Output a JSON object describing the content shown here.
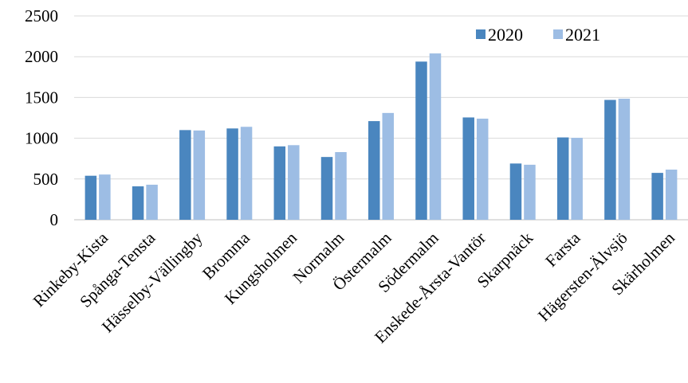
{
  "chart_data": {
    "type": "bar",
    "categories": [
      "Rinkeby-Kista",
      "Spånga-Tensta",
      "Hässelby-Vällingby",
      "Bromma",
      "Kungsholmen",
      "Normalm",
      "Östermalm",
      "Södermalm",
      "Enskede-Årsta-Vantör",
      "Skarpnäck",
      "Farsta",
      "Hägersten-Älvsjö",
      "Skärholmen"
    ],
    "series": [
      {
        "name": "2020",
        "color": "#4a86bf",
        "values": [
          540,
          410,
          1100,
          1120,
          900,
          770,
          1210,
          1940,
          1255,
          690,
          1010,
          1470,
          575
        ]
      },
      {
        "name": "2021",
        "color": "#9dbde4",
        "values": [
          555,
          430,
          1095,
          1140,
          915,
          830,
          1310,
          2040,
          1240,
          675,
          1005,
          1485,
          615
        ]
      }
    ],
    "yticks": [
      "0",
      "500",
      "1000",
      "1500",
      "2000",
      "2500"
    ],
    "ylim": [
      0,
      2500
    ],
    "grid": true,
    "legend_position": "top-right",
    "title": "",
    "xlabel": "",
    "ylabel": ""
  }
}
